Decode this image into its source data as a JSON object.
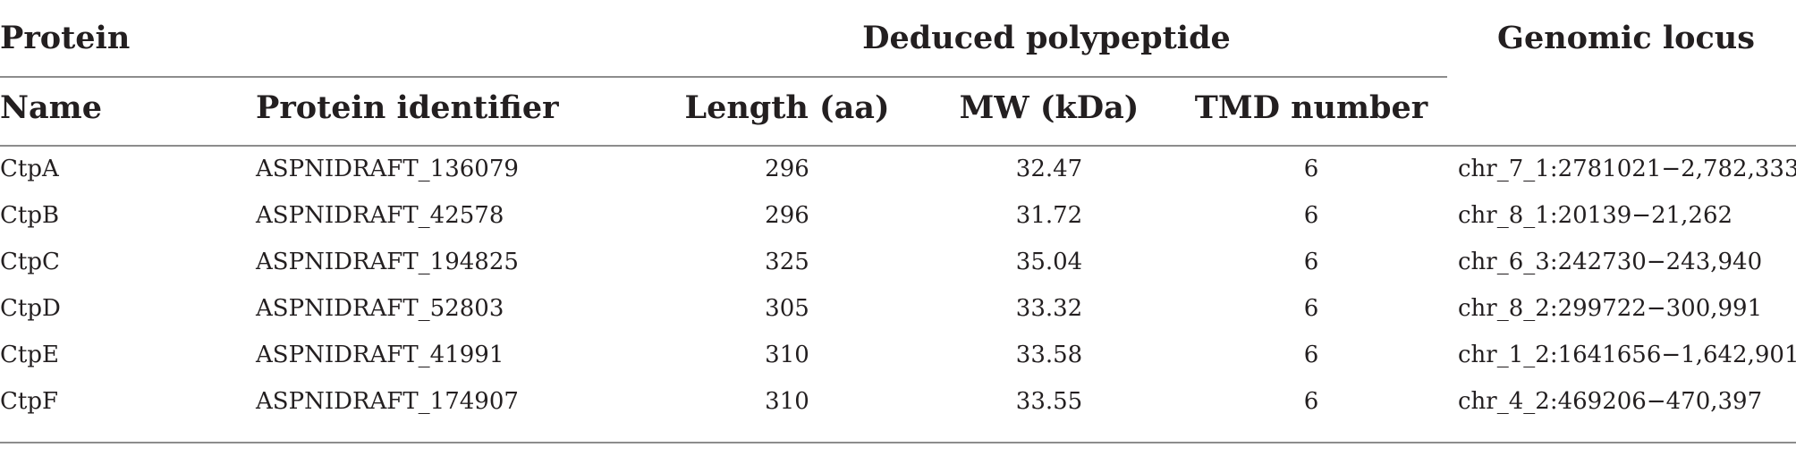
{
  "header": {
    "group_protein": "Protein",
    "group_polypeptide": "Deduced polypeptide",
    "group_locus": "Genomic locus",
    "col_name": "Name",
    "col_identifier": "Protein identifier",
    "col_length": "Length (aa)",
    "col_mw": "MW (kDa)",
    "col_tmd": "TMD number"
  },
  "rows": [
    {
      "name": "CtpA",
      "identifier": "ASPNIDRAFT_136079",
      "length": "296",
      "mw": "32.47",
      "tmd": "6",
      "locus": "chr_7_1:2781021−2,782,333"
    },
    {
      "name": "CtpB",
      "identifier": "ASPNIDRAFT_42578",
      "length": "296",
      "mw": "31.72",
      "tmd": "6",
      "locus": "chr_8_1:20139−21,262"
    },
    {
      "name": "CtpC",
      "identifier": "ASPNIDRAFT_194825",
      "length": "325",
      "mw": "35.04",
      "tmd": "6",
      "locus": "chr_6_3:242730−243,940"
    },
    {
      "name": "CtpD",
      "identifier": "ASPNIDRAFT_52803",
      "length": "305",
      "mw": "33.32",
      "tmd": "6",
      "locus": "chr_8_2:299722−300,991"
    },
    {
      "name": "CtpE",
      "identifier": "ASPNIDRAFT_41991",
      "length": "310",
      "mw": "33.58",
      "tmd": "6",
      "locus": "chr_1_2:1641656−1,642,901"
    },
    {
      "name": "CtpF",
      "identifier": "ASPNIDRAFT_174907",
      "length": "310",
      "mw": "33.55",
      "tmd": "6",
      "locus": "chr_4_2:469206−470,397"
    }
  ]
}
